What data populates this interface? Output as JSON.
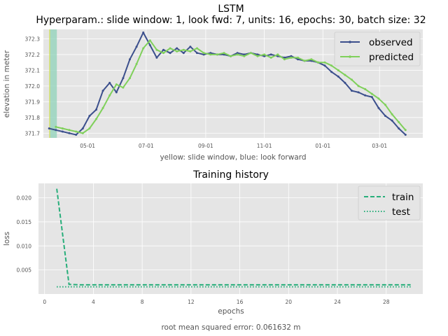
{
  "figure": {
    "title_main": "LSTM",
    "title_sub": "Hyperparam.: slide window: 1, look fwd: 7, units: 16, epochs: 30, batch size: 32",
    "footer_dash": "-",
    "footer_rmse": "root mean squared error: 0.061632 m"
  },
  "colors": {
    "observed": "#3b4f8c",
    "predicted": "#7fd05a",
    "train": "#27ae7a",
    "test": "#27ae7a",
    "slide_window": "#d6e05a",
    "look_forward": "#8fd1b8",
    "panel_bg": "#e5e5e5",
    "grid": "#ffffff"
  },
  "chart_data": [
    {
      "type": "line",
      "title": "",
      "xlabel": "yellow: slide window, blue: look forward",
      "ylabel": "elevation in meter",
      "x_type": "date",
      "x_ticks": [
        "05-01",
        "07-01",
        "09-01",
        "11-01",
        "01-01",
        "03-01"
      ],
      "y_ticks": [
        371.7,
        371.8,
        371.9,
        372.0,
        372.1,
        372.2,
        372.3
      ],
      "ylim": [
        371.67,
        372.36
      ],
      "grid": true,
      "legend": "top-right",
      "highlight_bands": [
        {
          "name": "slide window",
          "start": "03-22",
          "end": "03-23"
        },
        {
          "name": "look forward",
          "start": "03-23",
          "end": "03-30"
        }
      ],
      "series": [
        {
          "name": "observed",
          "x": [
            "03-22",
            "03-29",
            "04-05",
            "04-12",
            "04-19",
            "04-26",
            "05-03",
            "05-10",
            "05-17",
            "05-24",
            "05-31",
            "06-07",
            "06-14",
            "06-21",
            "06-28",
            "07-05",
            "07-12",
            "07-19",
            "07-26",
            "08-02",
            "08-09",
            "08-16",
            "08-23",
            "08-30",
            "09-06",
            "09-13",
            "09-20",
            "09-27",
            "10-04",
            "10-11",
            "10-18",
            "10-25",
            "11-01",
            "11-08",
            "11-15",
            "11-22",
            "11-29",
            "12-06",
            "12-13",
            "12-20",
            "12-27",
            "01-03",
            "01-10",
            "01-17",
            "01-24",
            "01-31",
            "02-07",
            "02-14",
            "02-21",
            "02-28",
            "03-07",
            "03-14",
            "03-21",
            "03-28"
          ],
          "values": [
            371.73,
            371.72,
            371.71,
            371.7,
            371.69,
            371.73,
            371.81,
            371.85,
            371.97,
            372.02,
            371.96,
            372.05,
            372.17,
            372.25,
            372.34,
            372.26,
            372.18,
            372.23,
            372.21,
            372.24,
            372.21,
            372.25,
            372.21,
            372.2,
            372.21,
            372.2,
            372.2,
            372.19,
            372.21,
            372.2,
            372.21,
            372.2,
            372.19,
            372.2,
            372.19,
            372.18,
            372.19,
            372.17,
            372.16,
            372.16,
            372.15,
            372.13,
            372.09,
            372.06,
            372.02,
            371.97,
            371.96,
            371.94,
            371.93,
            371.86,
            371.81,
            371.78,
            371.73,
            371.69
          ]
        },
        {
          "name": "predicted",
          "x": [
            "03-29",
            "04-05",
            "04-12",
            "04-19",
            "04-26",
            "05-03",
            "05-10",
            "05-17",
            "05-24",
            "05-31",
            "06-07",
            "06-14",
            "06-21",
            "06-28",
            "07-05",
            "07-12",
            "07-19",
            "07-26",
            "08-02",
            "08-09",
            "08-16",
            "08-23",
            "08-30",
            "09-06",
            "09-13",
            "09-20",
            "09-27",
            "10-04",
            "10-11",
            "10-18",
            "10-25",
            "11-01",
            "11-08",
            "11-15",
            "11-22",
            "11-29",
            "12-06",
            "12-13",
            "12-20",
            "12-27",
            "01-03",
            "01-10",
            "01-17",
            "01-24",
            "01-31",
            "02-07",
            "02-14",
            "02-21",
            "02-28",
            "03-07",
            "03-14",
            "03-21",
            "03-28"
          ],
          "values": [
            371.74,
            371.73,
            371.72,
            371.71,
            371.7,
            371.73,
            371.79,
            371.86,
            371.94,
            372.01,
            371.99,
            372.05,
            372.14,
            372.24,
            372.29,
            372.23,
            372.21,
            372.24,
            372.22,
            372.23,
            372.22,
            372.24,
            372.21,
            372.2,
            372.2,
            372.21,
            372.19,
            372.2,
            372.19,
            372.21,
            372.19,
            372.2,
            372.18,
            372.2,
            372.17,
            372.18,
            372.18,
            372.16,
            372.17,
            372.15,
            372.15,
            372.13,
            372.1,
            372.07,
            372.04,
            372.0,
            371.98,
            371.95,
            371.92,
            371.88,
            371.82,
            371.77,
            371.72
          ]
        }
      ]
    },
    {
      "type": "line",
      "title": "Training history",
      "xlabel": "epochs",
      "ylabel": "loss",
      "x_ticks": [
        0,
        4,
        8,
        12,
        16,
        20,
        24,
        28
      ],
      "y_ticks": [
        0.005,
        0.01,
        0.015,
        0.02
      ],
      "xlim": [
        -0.5,
        31
      ],
      "ylim": [
        0.0,
        0.023
      ],
      "grid": true,
      "legend": "top-right",
      "series": [
        {
          "name": "train",
          "style": "dashed",
          "x": [
            1,
            2,
            3,
            4,
            5,
            6,
            7,
            8,
            9,
            10,
            11,
            12,
            13,
            14,
            15,
            16,
            17,
            18,
            19,
            20,
            21,
            22,
            23,
            24,
            25,
            26,
            27,
            28,
            29,
            30
          ],
          "values": [
            0.0219,
            0.002,
            0.0019,
            0.0019,
            0.0019,
            0.0019,
            0.0019,
            0.0019,
            0.0019,
            0.0019,
            0.0019,
            0.0019,
            0.0019,
            0.0019,
            0.0019,
            0.0019,
            0.0019,
            0.0019,
            0.0019,
            0.0019,
            0.0019,
            0.0019,
            0.0019,
            0.0019,
            0.0019,
            0.0019,
            0.0019,
            0.0019,
            0.0019,
            0.0019
          ]
        },
        {
          "name": "test",
          "style": "dotted",
          "x": [
            1,
            2,
            3,
            4,
            5,
            6,
            7,
            8,
            9,
            10,
            11,
            12,
            13,
            14,
            15,
            16,
            17,
            18,
            19,
            20,
            21,
            22,
            23,
            24,
            25,
            26,
            27,
            28,
            29,
            30
          ],
          "values": [
            0.0015,
            0.0015,
            0.0015,
            0.0015,
            0.0015,
            0.0015,
            0.0015,
            0.0015,
            0.0015,
            0.0015,
            0.0015,
            0.0015,
            0.0015,
            0.0015,
            0.0015,
            0.0015,
            0.0015,
            0.0015,
            0.0015,
            0.0015,
            0.0015,
            0.0015,
            0.0015,
            0.0015,
            0.0015,
            0.0015,
            0.0015,
            0.0015,
            0.0015,
            0.0015
          ]
        }
      ]
    }
  ]
}
